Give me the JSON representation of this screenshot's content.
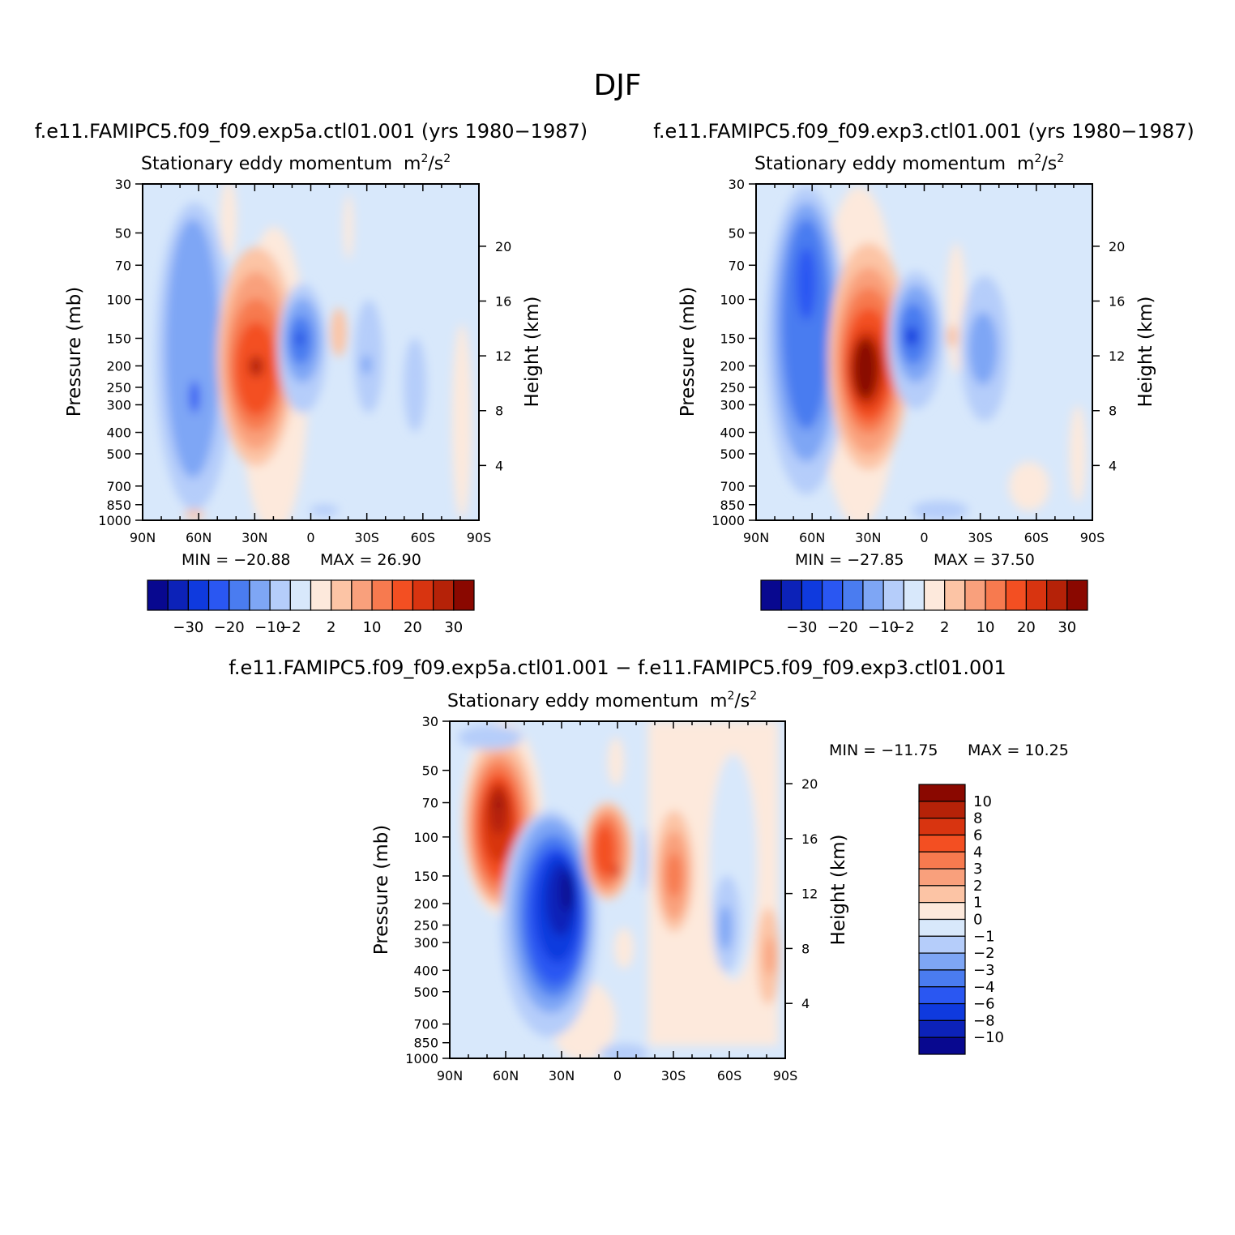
{
  "title": "DJF",
  "colors": {
    "top_palette": [
      "#08088f",
      "#0c22b8",
      "#0f3ade",
      "#2a57f2",
      "#4a7cf0",
      "#7ea6f5",
      "#b5cdfa",
      "#d8e8fb",
      "#fde9dc",
      "#fcc4a5",
      "#f9a07c",
      "#f77a4f",
      "#f34f22",
      "#d83410",
      "#b52208",
      "#8a0800"
    ],
    "diff_palette": [
      "#08088f",
      "#0c22b8",
      "#0f3ade",
      "#2a57f2",
      "#4a7cf0",
      "#7ea6f5",
      "#b5cdfa",
      "#d8e8fb",
      "#fde9dc",
      "#fcc4a5",
      "#f9a07c",
      "#f77a4f",
      "#f34f22",
      "#d83410",
      "#b52208",
      "#8a0800"
    ]
  },
  "chart_data": [
    {
      "type": "heatmap",
      "title": "f.e11.FAMIPC5.f09_f09.exp5a.ctl01.001 (yrs 1980-1987)",
      "title_display": "f.e11.FAMIPC5.f09_f09.exp5a.ctl01.001 (yrs 1980−1987)",
      "subtitle": "Stationary eddy momentum",
      "units": "m²/s²",
      "units_base": "m",
      "units_sup1": "2",
      "units_mid": "/s",
      "units_sup2": "2",
      "ylabel": "Pressure (mb)",
      "ylabel_right": "Height (km)",
      "x_ticks": [
        "90N",
        "60N",
        "30N",
        "0",
        "30S",
        "60S",
        "90S"
      ],
      "y_ticks": [
        "30",
        "50",
        "70",
        "100",
        "150",
        "200",
        "250",
        "300",
        "400",
        "500",
        "700",
        "850",
        "1000"
      ],
      "y_right_ticks": [
        "20",
        "16",
        "12",
        "8",
        "4"
      ],
      "min_label": "MIN = −20.88",
      "max_label": "MAX = 26.90",
      "min": -20.88,
      "max": 26.9,
      "colorbar_labels": [
        "−30",
        "−20",
        "−10",
        "−2",
        "2",
        "10",
        "20",
        "30"
      ],
      "features": [
        {
          "lat": 60,
          "pressure": 250,
          "value": -20
        },
        {
          "lat": 30,
          "pressure": 200,
          "value": 26
        },
        {
          "lat": 8,
          "pressure": 150,
          "value": -18
        },
        {
          "lat": -30,
          "pressure": 200,
          "value": -6
        },
        {
          "lat": -60,
          "pressure": 300,
          "value": -4
        }
      ]
    },
    {
      "type": "heatmap",
      "title": "f.e11.FAMIPC5.f09_f09.exp3.ctl01.001 (yrs 1980-1987)",
      "title_display": "f.e11.FAMIPC5.f09_f09.exp3.ctl01.001 (yrs 1980−1987)",
      "subtitle": "Stationary eddy momentum",
      "units": "m²/s²",
      "units_base": "m",
      "units_sup1": "2",
      "units_mid": "/s",
      "units_sup2": "2",
      "ylabel": "Pressure (mb)",
      "ylabel_right": "Height (km)",
      "x_ticks": [
        "90N",
        "60N",
        "30N",
        "0",
        "30S",
        "60S",
        "90S"
      ],
      "y_ticks": [
        "30",
        "50",
        "70",
        "100",
        "150",
        "200",
        "250",
        "300",
        "400",
        "500",
        "700",
        "850",
        "1000"
      ],
      "y_right_ticks": [
        "20",
        "16",
        "12",
        "8",
        "4"
      ],
      "min_label": "MIN = −27.85",
      "max_label": "MAX = 37.50",
      "min": -27.85,
      "max": 37.5,
      "colorbar_labels": [
        "−30",
        "−20",
        "−10",
        "−2",
        "2",
        "10",
        "20",
        "30"
      ],
      "features": [
        {
          "lat": 60,
          "pressure": 100,
          "value": -27
        },
        {
          "lat": 30,
          "pressure": 200,
          "value": 37
        },
        {
          "lat": 8,
          "pressure": 150,
          "value": -25
        },
        {
          "lat": -30,
          "pressure": 200,
          "value": -6
        }
      ]
    },
    {
      "type": "heatmap",
      "title": "f.e11.FAMIPC5.f09_f09.exp5a.ctl01.001 - f.e11.FAMIPC5.f09_f09.exp3.ctl01.001",
      "title_display": "f.e11.FAMIPC5.f09_f09.exp5a.ctl01.001 − f.e11.FAMIPC5.f09_f09.exp3.ctl01.001",
      "subtitle": "Stationary eddy momentum",
      "units": "m²/s²",
      "units_base": "m",
      "units_sup1": "2",
      "units_mid": "/s",
      "units_sup2": "2",
      "ylabel": "Pressure (mb)",
      "ylabel_right": "Height (km)",
      "x_ticks": [
        "90N",
        "60N",
        "30N",
        "0",
        "30S",
        "60S",
        "90S"
      ],
      "y_ticks": [
        "30",
        "50",
        "70",
        "100",
        "150",
        "200",
        "250",
        "300",
        "400",
        "500",
        "700",
        "850",
        "1000"
      ],
      "y_right_ticks": [
        "20",
        "16",
        "12",
        "8",
        "4"
      ],
      "min_label": "MIN = −11.75",
      "max_label": "MAX = 10.25",
      "min": -11.75,
      "max": 10.25,
      "colorbar_labels": [
        "10",
        "8",
        "6",
        "4",
        "3",
        "2",
        "1",
        "0",
        "−1",
        "−2",
        "−3",
        "−4",
        "−6",
        "−8",
        "−10"
      ],
      "features": [
        {
          "lat": 64,
          "pressure": 70,
          "value": 10
        },
        {
          "lat": 28,
          "pressure": 180,
          "value": -11
        },
        {
          "lat": 8,
          "pressure": 120,
          "value": 7
        },
        {
          "lat": -28,
          "pressure": 150,
          "value": 4
        },
        {
          "lat": -58,
          "pressure": 250,
          "value": -3
        },
        {
          "lat": -84,
          "pressure": 300,
          "value": 2
        }
      ]
    }
  ]
}
